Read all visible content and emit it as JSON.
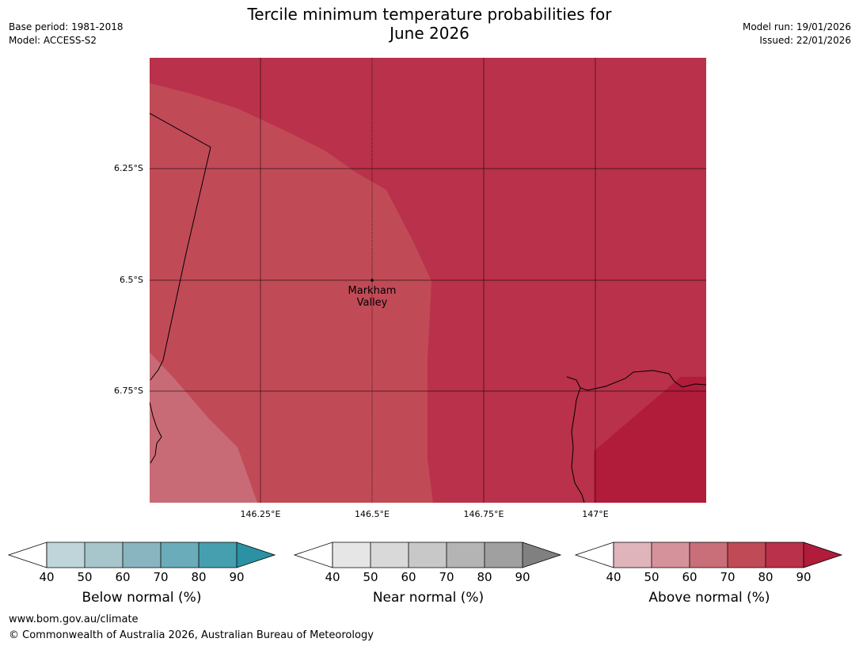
{
  "header": {
    "title_line1": "Tercile minimum temperature probabilities for",
    "title_line2": "June 2026",
    "base_period": "Base period: 1981-2018",
    "model": "Model: ACCESS-S2",
    "model_run": "Model run: 19/01/2026",
    "issued": "Issued: 22/01/2026"
  },
  "map": {
    "lat_ticks": [
      "6.25°S",
      "6.5°S",
      "6.75°S"
    ],
    "lon_ticks": [
      "146.25°E",
      "146.5°E",
      "146.75°E",
      "147°E"
    ],
    "location": {
      "name_line1": "Markham",
      "name_line2": "Valley"
    },
    "regions": [
      {
        "category": "Above normal",
        "range": "60-70",
        "color": "#c96b76"
      },
      {
        "category": "Above normal",
        "range": "70-80",
        "color": "#c14a57"
      },
      {
        "category": "Above normal",
        "range": "80-90",
        "color": "#b9314a"
      },
      {
        "category": "Above normal",
        "range": "90+",
        "color": "#b01c3a"
      }
    ]
  },
  "legends": [
    {
      "label": "Below normal (%)",
      "ticks": [
        "40",
        "50",
        "60",
        "70",
        "80",
        "90"
      ],
      "colors": [
        "#ffffff",
        "#bfd5da",
        "#a6c6cb",
        "#89b5c0",
        "#6aacb9",
        "#469fae",
        "#2a92a3"
      ]
    },
    {
      "label": "Near normal (%)",
      "ticks": [
        "40",
        "50",
        "60",
        "70",
        "80",
        "90"
      ],
      "colors": [
        "#ffffff",
        "#e6e6e6",
        "#d9d9d9",
        "#c8c8c8",
        "#b4b4b4",
        "#a0a0a0",
        "#808080"
      ]
    },
    {
      "label": "Above normal (%)",
      "ticks": [
        "40",
        "50",
        "60",
        "70",
        "80",
        "90"
      ],
      "colors": [
        "#ffffff",
        "#e0b4bb",
        "#d6929b",
        "#c96f79",
        "#c14a57",
        "#b9314a",
        "#b01c3a"
      ]
    }
  ],
  "footer": {
    "url": "www.bom.gov.au/climate",
    "copyright": "© Commonwealth of Australia 2026, Australian Bureau of Meteorology"
  }
}
